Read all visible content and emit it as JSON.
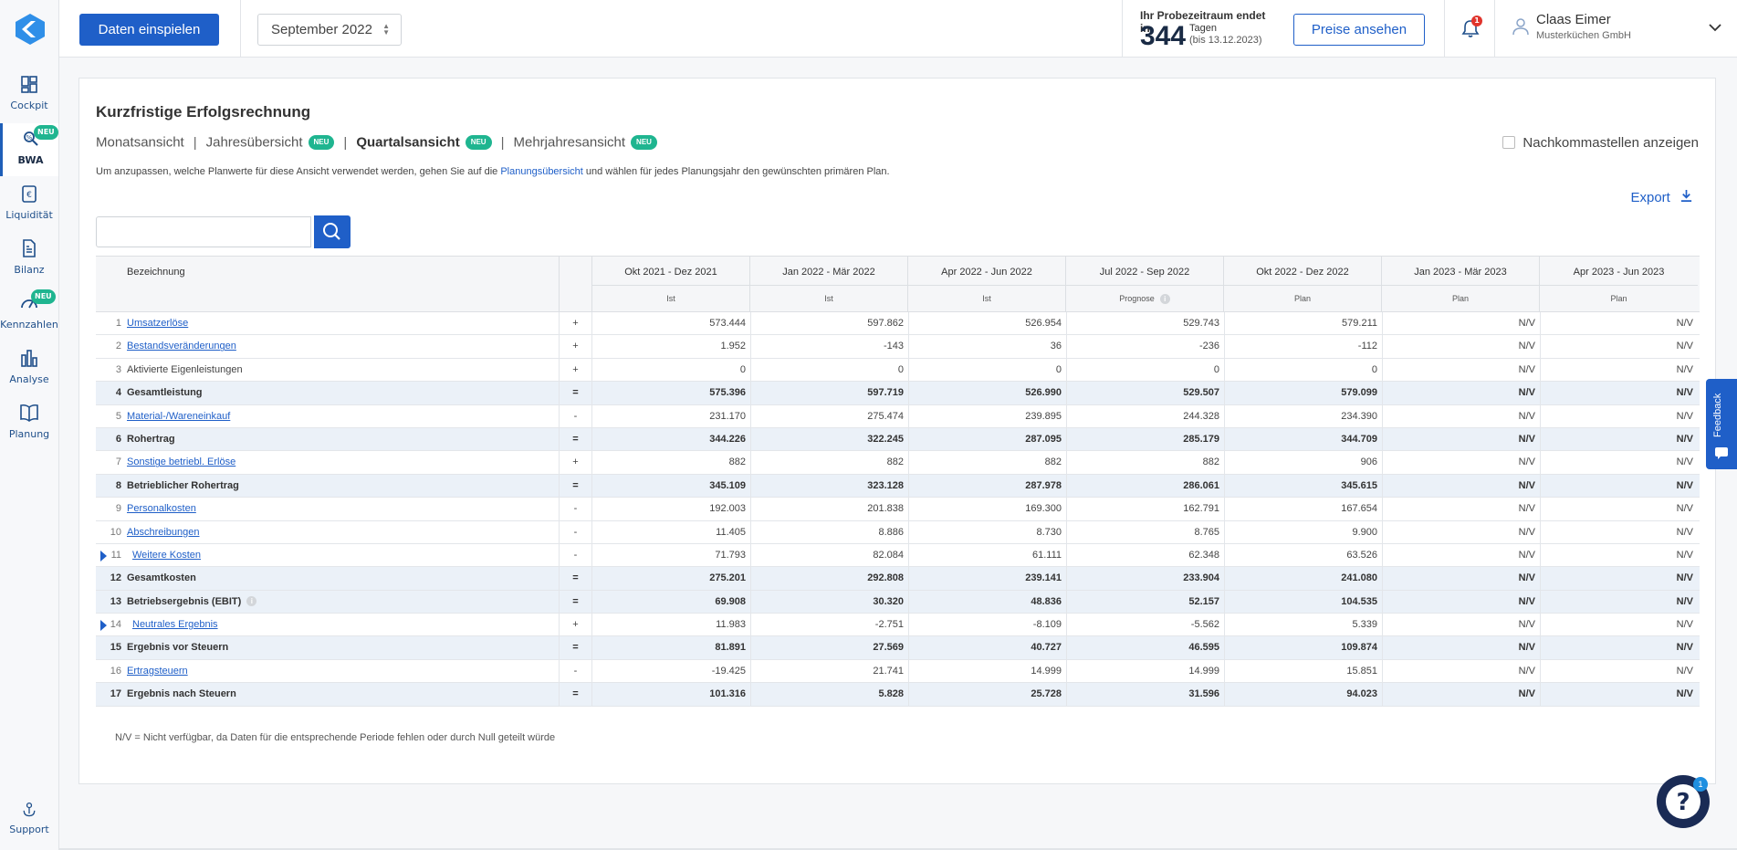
{
  "sidebar": {
    "items": [
      {
        "label": "Cockpit",
        "icon": "dashboard-icon"
      },
      {
        "label": "BWA",
        "icon": "bwa-icon",
        "badge": "NEU",
        "active": true
      },
      {
        "label": "Liquidität",
        "icon": "liquidity-icon"
      },
      {
        "label": "Bilanz",
        "icon": "balance-icon"
      },
      {
        "label": "Kennzahlen",
        "icon": "gauge-icon",
        "badge": "NEU"
      },
      {
        "label": "Analyse",
        "icon": "bar-chart-icon"
      },
      {
        "label": "Planung",
        "icon": "book-icon"
      }
    ],
    "support": {
      "label": "Support",
      "icon": "support-icon"
    }
  },
  "topbar": {
    "import_label": "Daten einspielen",
    "month": "September 2022",
    "trial": {
      "line1": "Ihr Probezeitraum endet in",
      "days": "344",
      "unit": "Tagen",
      "until": "(bis 13.12.2023)"
    },
    "prices_label": "Preise ansehen",
    "notification_count": "1",
    "user": {
      "name": "Claas Eimer",
      "company": "Musterküchen GmbH"
    }
  },
  "page": {
    "title": "Kurzfristige Erfolgsrechnung",
    "views": [
      {
        "label": "Monatsansicht",
        "neu": false,
        "active": false
      },
      {
        "label": "Jahresübersicht",
        "neu": true,
        "active": false
      },
      {
        "label": "Quartalsansicht",
        "neu": true,
        "active": true
      },
      {
        "label": "Mehrjahresansicht",
        "neu": true,
        "active": false
      }
    ],
    "neu_label": "NEU",
    "decimals_label": "Nachkommastellen anzeigen",
    "hint_before": "Um anzupassen, welche Planwerte für diese Ansicht verwendet werden, gehen Sie auf die ",
    "hint_link": "Planungsübersicht",
    "hint_after": " und wählen für jedes Planungsjahr den gewünschten primären Plan.",
    "export_label": "Export",
    "search_value": "",
    "footnote": "N/V = Nicht verfügbar, da Daten für die entsprechende Periode fehlen oder durch Null geteilt würde"
  },
  "table": {
    "label_header": "Bezeichnung",
    "periods": [
      {
        "label": "Okt 2021 - Dez 2021",
        "type": "Ist"
      },
      {
        "label": "Jan 2022 - Mär 2022",
        "type": "Ist"
      },
      {
        "label": "Apr 2022 - Jun 2022",
        "type": "Ist"
      },
      {
        "label": "Jul 2022 - Sep 2022",
        "type": "Prognose",
        "info": true
      },
      {
        "label": "Okt 2022 - Dez 2022",
        "type": "Plan"
      },
      {
        "label": "Jan 2023 - Mär 2023",
        "type": "Plan"
      },
      {
        "label": "Apr 2023 - Jun 2023",
        "type": "Plan"
      }
    ],
    "rows": [
      {
        "n": "1",
        "label": "Umsatzerlöse",
        "link": true,
        "op": "+",
        "values": [
          "573.444",
          "597.862",
          "526.954",
          "529.743",
          "579.211",
          "N/V",
          "N/V"
        ]
      },
      {
        "n": "2",
        "label": "Bestandsveränderungen",
        "link": true,
        "op": "+",
        "values": [
          "1.952",
          "-143",
          "36",
          "-236",
          "-112",
          "N/V",
          "N/V"
        ]
      },
      {
        "n": "3",
        "label": "Aktivierte Eigenleistungen",
        "link": false,
        "op": "+",
        "values": [
          "0",
          "0",
          "0",
          "0",
          "0",
          "N/V",
          "N/V"
        ]
      },
      {
        "n": "4",
        "label": "Gesamtleistung",
        "bold": true,
        "op": "=",
        "values": [
          "575.396",
          "597.719",
          "526.990",
          "529.507",
          "579.099",
          "N/V",
          "N/V"
        ]
      },
      {
        "n": "5",
        "label": "Material-/Wareneinkauf",
        "link": true,
        "op": "-",
        "values": [
          "231.170",
          "275.474",
          "239.895",
          "244.328",
          "234.390",
          "N/V",
          "N/V"
        ]
      },
      {
        "n": "6",
        "label": "Rohertrag",
        "bold": true,
        "op": "=",
        "values": [
          "344.226",
          "322.245",
          "287.095",
          "285.179",
          "344.709",
          "N/V",
          "N/V"
        ]
      },
      {
        "n": "7",
        "label": "Sonstige betriebl. Erlöse",
        "link": true,
        "op": "+",
        "values": [
          "882",
          "882",
          "882",
          "882",
          "906",
          "N/V",
          "N/V"
        ]
      },
      {
        "n": "8",
        "label": "Betrieblicher Rohertrag",
        "bold": true,
        "op": "=",
        "values": [
          "345.109",
          "323.128",
          "287.978",
          "286.061",
          "345.615",
          "N/V",
          "N/V"
        ]
      },
      {
        "n": "9",
        "label": "Personalkosten",
        "link": true,
        "op": "-",
        "values": [
          "192.003",
          "201.838",
          "169.300",
          "162.791",
          "167.654",
          "N/V",
          "N/V"
        ]
      },
      {
        "n": "10",
        "label": "Abschreibungen",
        "link": true,
        "op": "-",
        "values": [
          "11.405",
          "8.886",
          "8.730",
          "8.765",
          "9.900",
          "N/V",
          "N/V"
        ]
      },
      {
        "n": "11",
        "label": "Weitere Kosten",
        "link": true,
        "expand": true,
        "op": "-",
        "values": [
          "71.793",
          "82.084",
          "61.111",
          "62.348",
          "63.526",
          "N/V",
          "N/V"
        ]
      },
      {
        "n": "12",
        "label": "Gesamtkosten",
        "bold": true,
        "op": "=",
        "values": [
          "275.201",
          "292.808",
          "239.141",
          "233.904",
          "241.080",
          "N/V",
          "N/V"
        ]
      },
      {
        "n": "13",
        "label": "Betriebsergebnis (EBIT)",
        "bold": true,
        "info": true,
        "op": "=",
        "values": [
          "69.908",
          "30.320",
          "48.836",
          "52.157",
          "104.535",
          "N/V",
          "N/V"
        ]
      },
      {
        "n": "14",
        "label": "Neutrales Ergebnis",
        "link": true,
        "expand": true,
        "op": "+",
        "values": [
          "11.983",
          "-2.751",
          "-8.109",
          "-5.562",
          "5.339",
          "N/V",
          "N/V"
        ]
      },
      {
        "n": "15",
        "label": "Ergebnis vor Steuern",
        "bold": true,
        "op": "=",
        "values": [
          "81.891",
          "27.569",
          "40.727",
          "46.595",
          "109.874",
          "N/V",
          "N/V"
        ]
      },
      {
        "n": "16",
        "label": "Ertragsteuern",
        "link": true,
        "op": "-",
        "values": [
          "-19.425",
          "21.741",
          "14.999",
          "14.999",
          "15.851",
          "N/V",
          "N/V"
        ]
      },
      {
        "n": "17",
        "label": "Ergebnis nach Steuern",
        "bold": true,
        "op": "=",
        "values": [
          "101.316",
          "5.828",
          "25.728",
          "31.596",
          "94.023",
          "N/V",
          "N/V"
        ]
      }
    ]
  },
  "feedback_label": "Feedback",
  "help": {
    "badge": "1"
  },
  "colors": {
    "primary": "#1f5fc8",
    "neu_badge": "#1fb590",
    "bold_row": "#ebf1f8",
    "notification": "#e0342c"
  }
}
